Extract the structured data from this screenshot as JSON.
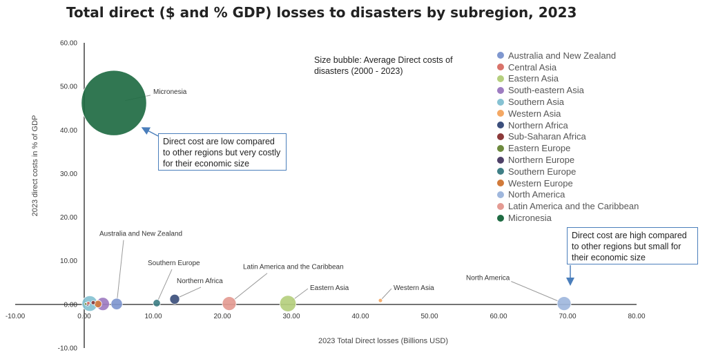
{
  "chart_data": {
    "type": "bubble",
    "title": "Total direct ($ and % GDP) losses to disasters by subregion, 2023",
    "xlabel": "2023 Total Direct losses (Billions USD)",
    "ylabel": "2023 direct costs in % of GDP",
    "xlim": [
      -10,
      80
    ],
    "ylim": [
      -10,
      60
    ],
    "x_ticks": [
      "-10.00",
      "0.00",
      "10.00",
      "20.00",
      "30.00",
      "40.00",
      "50.00",
      "60.00",
      "70.00",
      "80.00"
    ],
    "y_ticks": [
      "-10.00",
      "0.00",
      "10.00",
      "20.00",
      "30.00",
      "40.00",
      "50.00",
      "60.00"
    ],
    "size_note": "Size bubble: Average Direct costs of disasters (2000 - 2023)",
    "series": [
      {
        "name": "Australia and New Zealand",
        "color": "#7f97cf",
        "x": 4.7,
        "y": 0.1,
        "size": 1.4
      },
      {
        "name": "Central Asia",
        "color": "#d9736a",
        "x": 0.6,
        "y": 0.3,
        "size": 0.4
      },
      {
        "name": "Eastern Asia",
        "color": "#b5cf7e",
        "x": 29.5,
        "y": 0.2,
        "size": 2.0
      },
      {
        "name": "South-eastern Asia",
        "color": "#9e7cc1",
        "x": 2.7,
        "y": 0.1,
        "size": 1.6
      },
      {
        "name": "Southern Asia",
        "color": "#86c2d3",
        "x": 0.8,
        "y": 0.2,
        "size": 1.9
      },
      {
        "name": "Western Asia",
        "color": "#f4a864",
        "x": 42.9,
        "y": 0.9,
        "size": 0.5
      },
      {
        "name": "Northern Africa",
        "color": "#3c4f7c",
        "x": 13.1,
        "y": 1.2,
        "size": 1.2
      },
      {
        "name": "Sub-Saharan Africa",
        "color": "#8c3a3a",
        "x": 1.3,
        "y": 0.4,
        "size": 0.5
      },
      {
        "name": "Eastern Europe",
        "color": "#6d8a3e",
        "x": 0.2,
        "y": 0.1,
        "size": 0.3
      },
      {
        "name": "Northern Europe",
        "color": "#4f4168",
        "x": 0.5,
        "y": 0.1,
        "size": 0.5
      },
      {
        "name": "Southern Europe",
        "color": "#3f7f86",
        "x": 10.5,
        "y": 0.3,
        "size": 0.9
      },
      {
        "name": "Western Europe",
        "color": "#d17a3a",
        "x": 2.0,
        "y": 0.1,
        "size": 0.9
      },
      {
        "name": "North America",
        "color": "#9fb7dd",
        "x": 69.5,
        "y": 0.2,
        "size": 1.7
      },
      {
        "name": "Latin America and the Caribbean",
        "color": "#e49b93",
        "x": 21.0,
        "y": 0.2,
        "size": 1.7
      },
      {
        "name": "Micronesia",
        "color": "#1f6b43",
        "x": 4.3,
        "y": 46.2,
        "size": 8.0
      }
    ],
    "annotations": [
      {
        "text": "Micronesia",
        "series": "Micronesia",
        "label_x": 10.0,
        "label_y": 48.3
      },
      {
        "text": "Australia and New Zealand",
        "series": "Australia and New Zealand",
        "label_x": 2.2,
        "label_y": 15.7
      },
      {
        "text": "Southern Europe",
        "series": "Southern Europe",
        "label_x": 9.2,
        "label_y": 9.0
      },
      {
        "text": "Northern Africa",
        "series": "Northern Africa",
        "label_x": 13.4,
        "label_y": 4.9
      },
      {
        "text": "Latin America and the Caribbean",
        "series": "Latin America and the Caribbean",
        "label_x": 23.0,
        "label_y": 8.1
      },
      {
        "text": "Eastern Asia",
        "series": "Eastern Asia",
        "label_x": 32.7,
        "label_y": 3.3
      },
      {
        "text": "Western Asia",
        "series": "Western Asia",
        "label_x": 44.8,
        "label_y": 3.3
      },
      {
        "text": "North America",
        "series": "North America",
        "label_x": 55.3,
        "label_y": 5.6
      }
    ]
  },
  "callouts": {
    "low": "Direct cost are low compared to other regions but very costly for their economic size",
    "high": "Direct cost are high compared to other regions but small for their economic size"
  },
  "colors": {
    "axis": "#222222",
    "callout_border": "#4a7ebb",
    "callout_arrow": "#4a7ebb",
    "leader": "#999999"
  }
}
